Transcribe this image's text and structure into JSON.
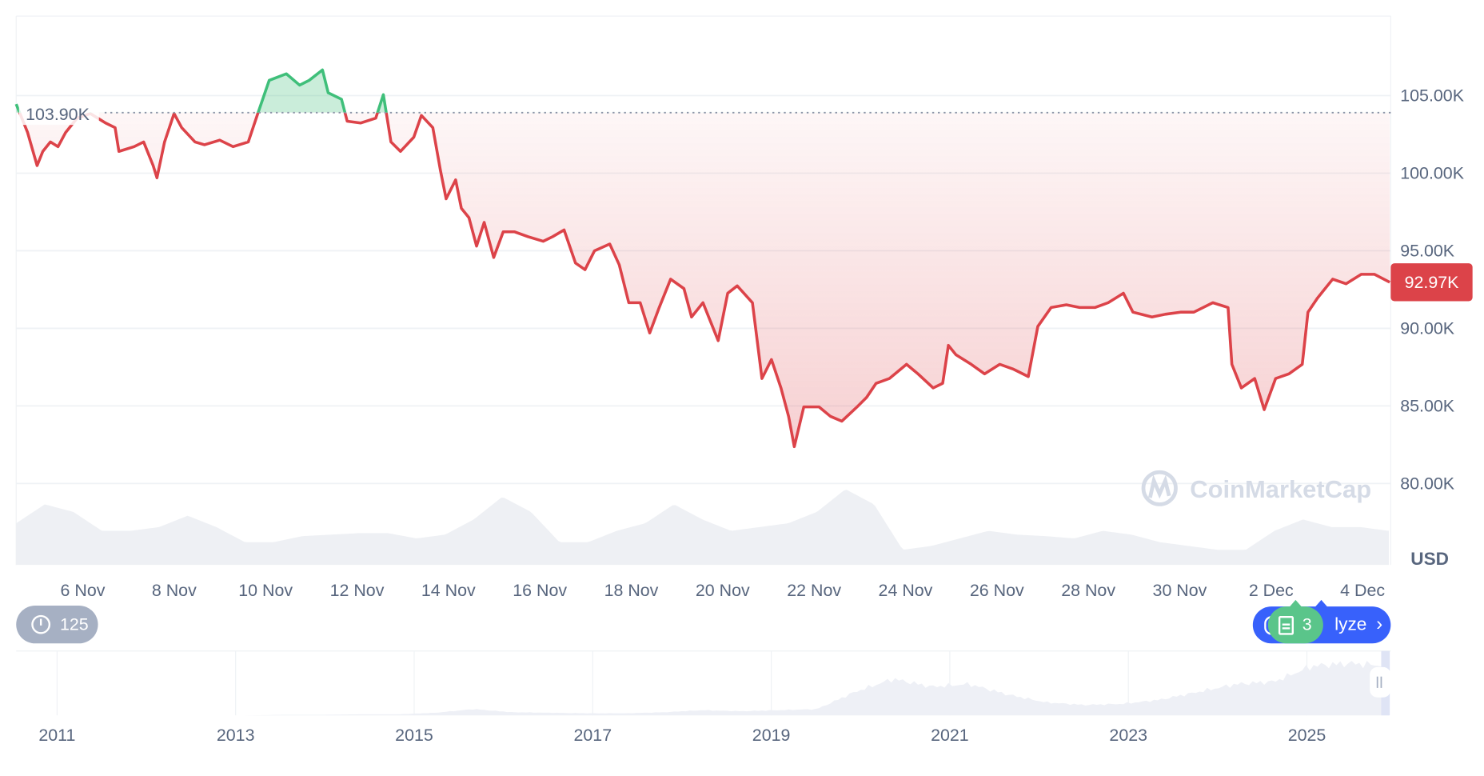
{
  "chart_data": {
    "type": "line",
    "currency_label": "USD",
    "ylim": [
      80000,
      108000
    ],
    "y_ticks": [
      "80.00K",
      "85.00K",
      "90.00K",
      "95.00K",
      "100.00K",
      "105.00K"
    ],
    "y_tick_values": [
      80000,
      85000,
      90000,
      95000,
      100000,
      105000
    ],
    "x_ticks": [
      "6 Nov",
      "8 Nov",
      "10 Nov",
      "12 Nov",
      "14 Nov",
      "16 Nov",
      "18 Nov",
      "20 Nov",
      "22 Nov",
      "24 Nov",
      "26 Nov",
      "28 Nov",
      "30 Nov",
      "2 Dec",
      "4 Dec"
    ],
    "grid": true,
    "baseline": {
      "value": 103900,
      "label": "103.90K"
    },
    "current_price": {
      "value": 92970,
      "label": "92.97K"
    },
    "colors": {
      "above": "#3fbf7a",
      "below": "#dc4349",
      "price_tag": "#dc4349"
    },
    "series": [
      {
        "x": [
          "Nov 4 13:00",
          "Nov 4 19:00",
          "Nov 5 00:00",
          "Nov 5 03:00",
          "Nov 5 07:00",
          "Nov 5 11:00",
          "Nov 5 15:00",
          "Nov 5 21:00",
          "Nov 6 04:00",
          "Nov 6 12:00",
          "Nov 6 17:00",
          "Nov 6 19:00",
          "Nov 7 03:00",
          "Nov 7 08:00",
          "Nov 7 13:00",
          "Nov 7 15:00",
          "Nov 7 19:00",
          "Nov 8 00:00",
          "Nov 8 04:00",
          "Nov 8 11:00",
          "Nov 8 16:00",
          "Nov 9 00:00",
          "Nov 9 07:00",
          "Nov 9 15:00",
          "Nov 9 20:00",
          "Nov 10 02:00",
          "Nov 10 11:00",
          "Nov 10 18:00",
          "Nov 10 23:00",
          "Nov 11 06:00",
          "Nov 11 09:00",
          "Nov 11 16:00",
          "Nov 11 19:00",
          "Nov 12 02:00",
          "Nov 12 10:00",
          "Nov 12 14:00",
          "Nov 12 18:00",
          "Nov 12 23:00",
          "Nov 13 06:00",
          "Nov 13 10:00",
          "Nov 13 16:00",
          "Nov 13 20:00",
          "Nov 13 23:00",
          "Nov 14 04:00",
          "Nov 14 07:00",
          "Nov 14 11:00",
          "Nov 14 15:00",
          "Nov 14 19:00",
          "Nov 15 00:00",
          "Nov 15 05:00",
          "Nov 15 11:00",
          "Nov 15 18:00",
          "Nov 16 02:00",
          "Nov 16 07:00",
          "Nov 16 13:00",
          "Nov 16 19:00",
          "Nov 17 00:00",
          "Nov 17 05:00",
          "Nov 17 13:00",
          "Nov 17 18:00",
          "Nov 17 23:00",
          "Nov 18 05:00",
          "Nov 18 10:00",
          "Nov 18 15:00",
          "Nov 18 21:00",
          "Nov 19 04:00",
          "Nov 19 08:00",
          "Nov 19 14:00",
          "Nov 19 19:00",
          "Nov 19 22:00",
          "Nov 20 03:00",
          "Nov 20 08:00",
          "Nov 20 16:00",
          "Nov 20 21:00",
          "Nov 21 02:00",
          "Nov 21 07:00",
          "Nov 21 11:00",
          "Nov 21 14:00",
          "Nov 21 19:00",
          "Nov 22 03:00",
          "Nov 22 09:00",
          "Nov 22 15:00",
          "Nov 22 23:00",
          "Nov 23 04:00",
          "Nov 23 09:00",
          "Nov 23 16:00",
          "Nov 24 01:00",
          "Nov 24 07:00",
          "Nov 24 15:00",
          "Nov 24 20:00",
          "Nov 24 23:00",
          "Nov 25 03:00",
          "Nov 25 11:00",
          "Nov 25 18:00",
          "Nov 26 02:00",
          "Nov 26 09:00",
          "Nov 26 17:00",
          "Nov 26 22:00",
          "Nov 27 05:00",
          "Nov 27 13:00",
          "Nov 27 20:00",
          "Nov 28 04:00",
          "Nov 28 11:00",
          "Nov 28 19:00",
          "Nov 29 00:00",
          "Nov 29 10:00",
          "Nov 29 17:00",
          "Nov 30 01:00",
          "Nov 30 08:00",
          "Nov 30 18:00",
          "Dec 1 02:00",
          "Dec 1 04:00",
          "Dec 1 09:00",
          "Dec 1 16:00",
          "Dec 1 21:00",
          "Dec 2 03:00",
          "Dec 2 10:00",
          "Dec 2 17:00",
          "Dec 2 20:00",
          "Dec 3 01:00",
          "Dec 3 09:00",
          "Dec 3 16:00",
          "Dec 4 00:00",
          "Dec 4 07:00",
          "Dec 4 15:00"
        ],
        "y": [
          104450,
          102620,
          100490,
          101400,
          102010,
          101710,
          102620,
          103540,
          103840,
          103230,
          102930,
          101400,
          101710,
          102010,
          100490,
          99700,
          102010,
          103840,
          102930,
          102010,
          101830,
          102130,
          101710,
          102010,
          103840,
          105980,
          106400,
          105670,
          105980,
          106650,
          105180,
          104760,
          103350,
          103230,
          103540,
          105060,
          102010,
          101400,
          102320,
          103720,
          102930,
          100180,
          98350,
          99570,
          97740,
          97130,
          95300,
          96830,
          94570,
          96220,
          96220,
          95910,
          95610,
          95910,
          96340,
          94210,
          93780,
          95000,
          95430,
          94090,
          91650,
          91650,
          89700,
          91340,
          93170,
          92560,
          90730,
          91650,
          90120,
          89210,
          92260,
          92740,
          91650,
          86770,
          87990,
          86160,
          84330,
          82380,
          84940,
          84940,
          84330,
          84020,
          84940,
          85550,
          86460,
          86770,
          87680,
          87070,
          86160,
          86460,
          88900,
          88290,
          87680,
          87070,
          87680,
          87380,
          86890,
          90120,
          91340,
          91520,
          91340,
          91340,
          91650,
          92260,
          91040,
          90730,
          90910,
          91040,
          91040,
          91650,
          91340,
          87680,
          86160,
          86770,
          84760,
          86770,
          87070,
          87680,
          91040,
          91950,
          93170,
          92870,
          93480,
          93480,
          92970
        ]
      }
    ],
    "volume_relative": [
      0.55,
      0.8,
      0.7,
      0.45,
      0.45,
      0.5,
      0.65,
      0.5,
      0.3,
      0.3,
      0.38,
      0.4,
      0.42,
      0.42,
      0.35,
      0.4,
      0.6,
      0.9,
      0.7,
      0.3,
      0.3,
      0.45,
      0.55,
      0.8,
      0.6,
      0.45,
      0.5,
      0.55,
      0.7,
      1.0,
      0.8,
      0.2,
      0.25,
      0.35,
      0.45,
      0.4,
      0.38,
      0.35,
      0.45,
      0.4,
      0.3,
      0.25,
      0.2,
      0.2,
      0.45,
      0.6,
      0.5,
      0.5,
      0.45
    ],
    "navigator": {
      "year_labels": [
        "2011",
        "2013",
        "2015",
        "2017",
        "2019",
        "2021",
        "2023",
        "2025"
      ],
      "history_relative": [
        0,
        0,
        0,
        0,
        0,
        0,
        0,
        0.01,
        0.01,
        0.02,
        0.02,
        0.05,
        0.12,
        0.06,
        0.05,
        0.04,
        0.04,
        0.06,
        0.1,
        0.08,
        0.1,
        0.12,
        0.45,
        0.7,
        0.55,
        0.6,
        0.4,
        0.25,
        0.2,
        0.22,
        0.3,
        0.45,
        0.6,
        0.65,
        0.95,
        1.0,
        0.95
      ]
    }
  },
  "watermark": "CoinMarketCap",
  "controls": {
    "history_count": "125",
    "news_count": "3",
    "analyze_label": "lyze",
    "icons": [
      "history-icon",
      "document-icon",
      "chat-icon",
      "chevron-right-icon",
      "pause-handle-icon"
    ]
  }
}
